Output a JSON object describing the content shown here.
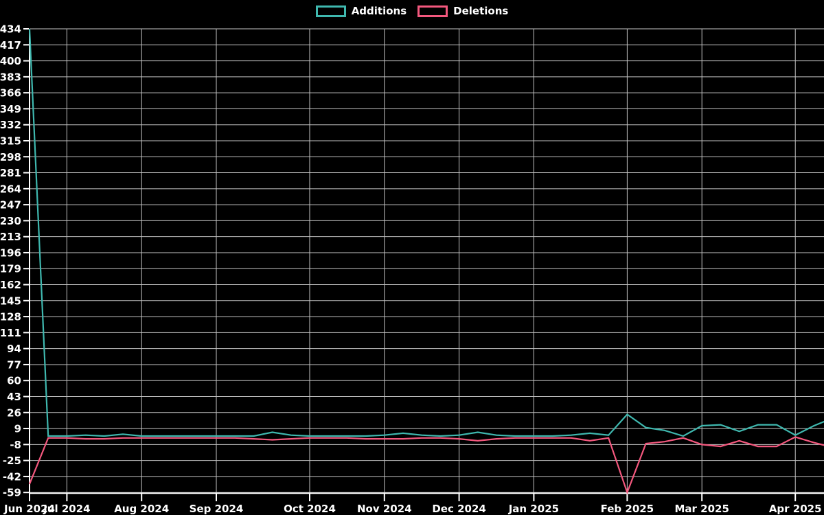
{
  "chart_data": {
    "type": "line",
    "title": "",
    "description": "Weekly additions and deletions line chart on black background, Jun 2024 - Apr 2025",
    "grid": true,
    "legend_position": "top-center",
    "background_color": "#000000",
    "axis_color": "#ffffff",
    "gridline_color": "#c4c4c4",
    "text_color": "#ffffff",
    "legend": [
      {
        "label": "Additions",
        "color": "#3fb8af"
      },
      {
        "label": "Deletions",
        "color": "#f4587e"
      }
    ],
    "y_axis": {
      "min": -59,
      "max": 434,
      "tick_step": 17,
      "tick_labels": [
        434,
        417,
        400,
        383,
        366,
        349,
        332,
        315,
        298,
        281,
        264,
        247,
        230,
        213,
        196,
        179,
        162,
        145,
        128,
        111,
        94,
        77,
        60,
        43,
        26,
        9,
        -8,
        -25,
        -42,
        -59
      ]
    },
    "x_axis": {
      "unit": "week",
      "num_points": 44,
      "tick_labels": [
        "Jun 2024",
        "Jul 2024",
        "Aug 2024",
        "Sep 2024",
        "Oct 2024",
        "Nov 2024",
        "Dec 2024",
        "Jan 2025",
        "Feb 2025",
        "Mar 2025",
        "Apr 2025"
      ],
      "tick_point_indices": [
        0,
        2,
        6,
        10,
        15,
        19,
        23,
        27,
        32,
        36,
        41
      ]
    },
    "series": [
      {
        "name": "Additions",
        "color": "#3fb8af",
        "values": [
          434,
          1,
          1,
          2,
          1,
          3,
          1,
          1,
          1,
          1,
          1,
          1,
          1,
          5,
          2,
          1,
          1,
          1,
          1,
          2,
          4,
          2,
          1,
          2,
          5,
          2,
          1,
          1,
          1,
          2,
          4,
          2,
          24,
          10,
          7,
          1,
          12,
          13,
          6,
          13,
          13,
          2,
          12,
          20
        ]
      },
      {
        "name": "Deletions",
        "color": "#f4587e",
        "values": [
          -50,
          -1,
          -1,
          -2,
          -2,
          -1,
          -1,
          -1,
          -1,
          -1,
          -1,
          -1,
          -2,
          -3,
          -2,
          -1,
          -1,
          -1,
          -2,
          -2,
          -2,
          -1,
          -1,
          -2,
          -4,
          -2,
          -1,
          -1,
          -1,
          -1,
          -4,
          -1,
          -59,
          -7,
          -5,
          -1,
          -8,
          -10,
          -4,
          -10,
          -10,
          0,
          -6,
          -11
        ]
      }
    ]
  }
}
